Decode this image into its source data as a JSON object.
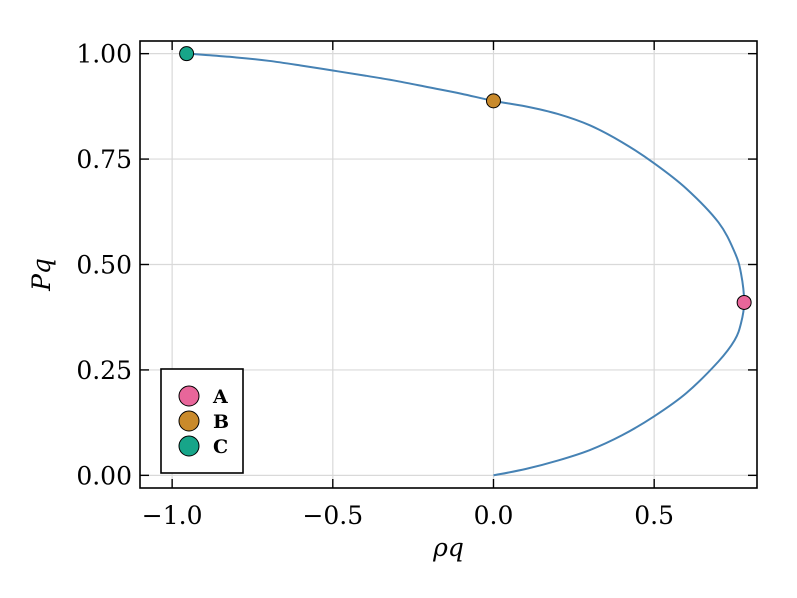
{
  "chart_data": {
    "type": "scatter",
    "xlabel": "ρq",
    "ylabel": "Pq",
    "xlim": [
      -1.1,
      0.82
    ],
    "ylim": [
      -0.03,
      1.03
    ],
    "xticks": [
      -1.0,
      -0.5,
      0.0,
      0.5
    ],
    "xtick_labels": [
      "−1.0",
      "−0.5",
      "0.0",
      "0.5"
    ],
    "yticks": [
      0.0,
      0.25,
      0.5,
      0.75,
      1.0
    ],
    "ytick_labels": [
      "0.00",
      "0.25",
      "0.50",
      "0.75",
      "1.00"
    ],
    "grid": true,
    "curve": {
      "color": "#4682b4",
      "x": [
        0.0,
        0.1,
        0.2,
        0.3,
        0.4,
        0.5,
        0.6,
        0.7,
        0.75,
        0.77,
        0.78,
        0.77,
        0.75,
        0.7,
        0.6,
        0.5,
        0.4,
        0.3,
        0.2,
        0.1,
        0.0,
        -0.1,
        -0.2,
        -0.3,
        -0.4,
        -0.5,
        -0.6,
        -0.7,
        -0.8,
        -0.9,
        -0.95
      ],
      "y": [
        0.0,
        0.015,
        0.035,
        0.06,
        0.095,
        0.14,
        0.195,
        0.27,
        0.32,
        0.36,
        0.41,
        0.48,
        0.53,
        0.6,
        0.68,
        0.74,
        0.79,
        0.83,
        0.857,
        0.875,
        0.888,
        0.905,
        0.92,
        0.935,
        0.948,
        0.96,
        0.972,
        0.983,
        0.991,
        0.997,
        1.0
      ]
    },
    "points": [
      {
        "name": "A",
        "x": 0.78,
        "y": 0.41,
        "color": "#e8669a"
      },
      {
        "name": "B",
        "x": 0.0,
        "y": 0.888,
        "color": "#c98a2b"
      },
      {
        "name": "C",
        "x": -0.955,
        "y": 1.0,
        "color": "#17a589"
      }
    ],
    "legend": {
      "position": "bottom-left",
      "entries": [
        "A",
        "B",
        "C"
      ]
    }
  }
}
